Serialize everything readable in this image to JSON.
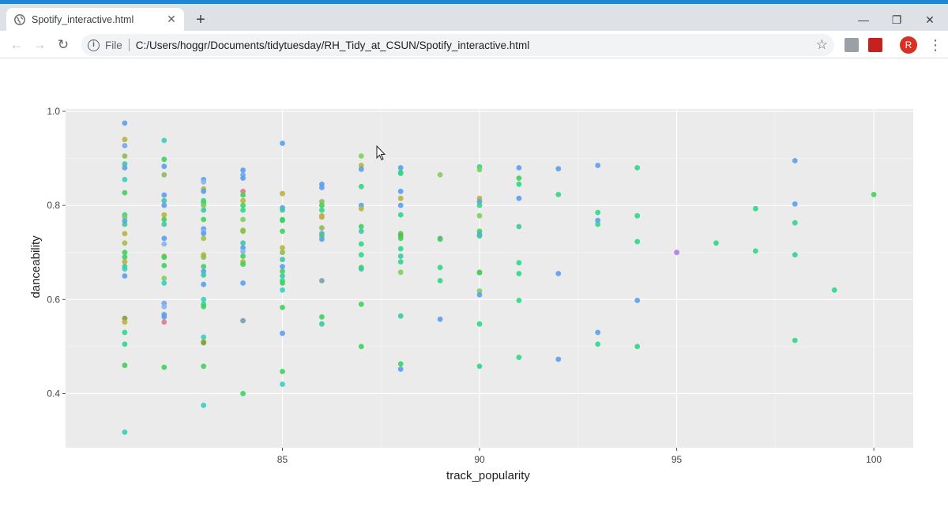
{
  "browser": {
    "tab_title": "Spotify_interactive.html",
    "tab_close": "✕",
    "new_tab": "+",
    "minimize": "—",
    "restore": "❐",
    "close": "✕",
    "back": "←",
    "forward": "→",
    "reload": "↻",
    "info_glyph": "i",
    "scheme_label": "File",
    "url": "C:/Users/hoggr/Documents/tidytuesday/RH_Tidy_at_CSUN/Spotify_interactive.html",
    "star": "☆",
    "avatar_letter": "R",
    "menu": "⋮"
  },
  "chart_data": {
    "type": "scatter",
    "xlabel": "track_popularity",
    "ylabel": "danceability",
    "xlim": [
      79.5,
      101
    ],
    "ylim": [
      0.285,
      1.005
    ],
    "x_ticks": [
      85,
      90,
      95,
      100
    ],
    "y_ticks": [
      0.4,
      0.6,
      0.8,
      1.0
    ],
    "x_tick_labels": [
      "85",
      "90",
      "95",
      "100"
    ],
    "y_tick_labels": [
      "0.4",
      "0.6",
      "0.8",
      "1.0"
    ],
    "grid": true,
    "background": "#ebebeb",
    "points": [
      [
        81,
        0.975,
        "#5b9ef0"
      ],
      [
        81,
        0.94,
        "#b9b43a"
      ],
      [
        81,
        0.927,
        "#70a8f0"
      ],
      [
        81,
        0.905,
        "#8dbe52"
      ],
      [
        81,
        0.888,
        "#3cc8a5"
      ],
      [
        81,
        0.88,
        "#5b9ef0"
      ],
      [
        81,
        0.855,
        "#35d0c0"
      ],
      [
        81,
        0.827,
        "#3fd25e"
      ],
      [
        81,
        0.78,
        "#2dd88a"
      ],
      [
        81,
        0.775,
        "#7fcf5c"
      ],
      [
        81,
        0.767,
        "#5b9ef0"
      ],
      [
        81,
        0.76,
        "#3cc8a5"
      ],
      [
        81,
        0.74,
        "#b9b43a"
      ],
      [
        81,
        0.72,
        "#a6bd47"
      ],
      [
        81,
        0.7,
        "#3fd25e"
      ],
      [
        81,
        0.69,
        "#3fd25e"
      ],
      [
        81,
        0.68,
        "#c4a94a"
      ],
      [
        81,
        0.67,
        "#2dd88a"
      ],
      [
        81,
        0.665,
        "#35d0c0"
      ],
      [
        81,
        0.65,
        "#5b9ef0"
      ],
      [
        81,
        0.56,
        "#7ca23a"
      ],
      [
        81,
        0.552,
        "#b9b43a"
      ],
      [
        81,
        0.53,
        "#2dd88a"
      ],
      [
        81,
        0.505,
        "#2dd88a"
      ],
      [
        81,
        0.46,
        "#3fd25e"
      ],
      [
        81,
        0.318,
        "#35d0c0"
      ],
      [
        82,
        0.938,
        "#35d0c0"
      ],
      [
        82,
        0.898,
        "#3fd25e"
      ],
      [
        82,
        0.883,
        "#5b9ef0"
      ],
      [
        82,
        0.865,
        "#8dbe52"
      ],
      [
        82,
        0.822,
        "#5b9ef0"
      ],
      [
        82,
        0.81,
        "#3cc8a5"
      ],
      [
        82,
        0.8,
        "#5b9ef0"
      ],
      [
        82,
        0.78,
        "#b9b43a"
      ],
      [
        82,
        0.77,
        "#3fd25e"
      ],
      [
        82,
        0.76,
        "#3cc8a5"
      ],
      [
        82,
        0.73,
        "#5b9ef0"
      ],
      [
        82,
        0.718,
        "#8ab5f0"
      ],
      [
        82,
        0.692,
        "#b9b43a"
      ],
      [
        82,
        0.69,
        "#3fd25e"
      ],
      [
        82,
        0.672,
        "#3fd25e"
      ],
      [
        82,
        0.645,
        "#7fcf5c"
      ],
      [
        82,
        0.635,
        "#35d0c0"
      ],
      [
        82,
        0.592,
        "#70a8f0"
      ],
      [
        82,
        0.585,
        "#8ab5f0"
      ],
      [
        82,
        0.568,
        "#5b9ef0"
      ],
      [
        82,
        0.563,
        "#5b9ef0"
      ],
      [
        82,
        0.552,
        "#e07a88"
      ],
      [
        82,
        0.456,
        "#3fd25e"
      ],
      [
        83,
        0.855,
        "#5b9ef0"
      ],
      [
        83,
        0.85,
        "#8ab5f0"
      ],
      [
        83,
        0.835,
        "#b9b43a"
      ],
      [
        83,
        0.83,
        "#5b9ef0"
      ],
      [
        83,
        0.81,
        "#2dd88a"
      ],
      [
        83,
        0.805,
        "#3fd25e"
      ],
      [
        83,
        0.8,
        "#7fcf5c"
      ],
      [
        83,
        0.79,
        "#3cc8a5"
      ],
      [
        83,
        0.77,
        "#3fd25e"
      ],
      [
        83,
        0.75,
        "#5b9ef0"
      ],
      [
        83,
        0.745,
        "#8ab5f0"
      ],
      [
        83,
        0.74,
        "#5b9ef0"
      ],
      [
        83,
        0.73,
        "#a6bd47"
      ],
      [
        83,
        0.695,
        "#b9b43a"
      ],
      [
        83,
        0.69,
        "#8dbe52"
      ],
      [
        83,
        0.67,
        "#3fd25e"
      ],
      [
        83,
        0.66,
        "#5b9ef0"
      ],
      [
        83,
        0.652,
        "#3cc8a5"
      ],
      [
        83,
        0.632,
        "#5b9ef0"
      ],
      [
        83,
        0.6,
        "#35d0c0"
      ],
      [
        83,
        0.59,
        "#2dd88a"
      ],
      [
        83,
        0.585,
        "#3fd25e"
      ],
      [
        83,
        0.52,
        "#35d0c0"
      ],
      [
        83,
        0.51,
        "#b9b43a"
      ],
      [
        83,
        0.508,
        "#7ca23a"
      ],
      [
        83,
        0.458,
        "#3fd25e"
      ],
      [
        83,
        0.375,
        "#35d0c0"
      ],
      [
        84,
        0.875,
        "#5b9ef0"
      ],
      [
        84,
        0.865,
        "#70a8f0"
      ],
      [
        84,
        0.858,
        "#5b9ef0"
      ],
      [
        84,
        0.83,
        "#e07a88"
      ],
      [
        84,
        0.822,
        "#3fd25e"
      ],
      [
        84,
        0.81,
        "#b9b43a"
      ],
      [
        84,
        0.8,
        "#3fd25e"
      ],
      [
        84,
        0.79,
        "#2dd88a"
      ],
      [
        84,
        0.77,
        "#7fcf5c"
      ],
      [
        84,
        0.747,
        "#8dbe52"
      ],
      [
        84,
        0.745,
        "#8dbe52"
      ],
      [
        84,
        0.72,
        "#3cc8a5"
      ],
      [
        84,
        0.71,
        "#5b9ef0"
      ],
      [
        84,
        0.702,
        "#8ab5f0"
      ],
      [
        84,
        0.692,
        "#3fd25e"
      ],
      [
        84,
        0.68,
        "#b9b43a"
      ],
      [
        84,
        0.675,
        "#3fd25e"
      ],
      [
        84,
        0.635,
        "#5b9ef0"
      ],
      [
        84,
        0.555,
        "#7a9da8"
      ],
      [
        84,
        0.4,
        "#3fd25e"
      ],
      [
        85,
        0.932,
        "#5b9ef0"
      ],
      [
        85,
        0.825,
        "#b9b43a"
      ],
      [
        85,
        0.795,
        "#5b9ef0"
      ],
      [
        85,
        0.79,
        "#3cc8a5"
      ],
      [
        85,
        0.77,
        "#2dd88a"
      ],
      [
        85,
        0.768,
        "#3fd25e"
      ],
      [
        85,
        0.745,
        "#3fd25e"
      ],
      [
        85,
        0.71,
        "#b9b43a"
      ],
      [
        85,
        0.7,
        "#8dbe52"
      ],
      [
        85,
        0.685,
        "#3cc8a5"
      ],
      [
        85,
        0.67,
        "#5b9ef0"
      ],
      [
        85,
        0.66,
        "#3fd25e"
      ],
      [
        85,
        0.65,
        "#3cc8a5"
      ],
      [
        85,
        0.64,
        "#2dd88a"
      ],
      [
        85,
        0.635,
        "#3fd25e"
      ],
      [
        85,
        0.62,
        "#35d0c0"
      ],
      [
        85,
        0.583,
        "#3fd25e"
      ],
      [
        85,
        0.528,
        "#5b9ef0"
      ],
      [
        85,
        0.447,
        "#3fd25e"
      ],
      [
        85,
        0.42,
        "#35d0c0"
      ],
      [
        86,
        0.845,
        "#5b9ef0"
      ],
      [
        86,
        0.838,
        "#5b9ef0"
      ],
      [
        86,
        0.808,
        "#8dbe52"
      ],
      [
        86,
        0.8,
        "#3fd25e"
      ],
      [
        86,
        0.79,
        "#2dd88a"
      ],
      [
        86,
        0.778,
        "#b9b43a"
      ],
      [
        86,
        0.775,
        "#c4a94a"
      ],
      [
        86,
        0.752,
        "#8dbe52"
      ],
      [
        86,
        0.74,
        "#5b9ef0"
      ],
      [
        86,
        0.735,
        "#3fd25e"
      ],
      [
        86,
        0.728,
        "#5b9ef0"
      ],
      [
        86,
        0.64,
        "#7a9da8"
      ],
      [
        86,
        0.563,
        "#3fd25e"
      ],
      [
        86,
        0.548,
        "#3cc8a5"
      ],
      [
        87,
        0.905,
        "#7fcf5c"
      ],
      [
        87,
        0.885,
        "#b9b43a"
      ],
      [
        87,
        0.877,
        "#5b9ef0"
      ],
      [
        87,
        0.84,
        "#2dd88a"
      ],
      [
        87,
        0.8,
        "#5b9ef0"
      ],
      [
        87,
        0.793,
        "#b9b43a"
      ],
      [
        87,
        0.755,
        "#3fd25e"
      ],
      [
        87,
        0.745,
        "#3cc8a5"
      ],
      [
        87,
        0.718,
        "#2dd88a"
      ],
      [
        87,
        0.695,
        "#2dd88a"
      ],
      [
        87,
        0.668,
        "#3fd25e"
      ],
      [
        87,
        0.665,
        "#3cc8a5"
      ],
      [
        87,
        0.59,
        "#3fd25e"
      ],
      [
        87,
        0.5,
        "#3fd25e"
      ],
      [
        88,
        0.88,
        "#5b9ef0"
      ],
      [
        88,
        0.87,
        "#3fd25e"
      ],
      [
        88,
        0.868,
        "#2dd88a"
      ],
      [
        88,
        0.83,
        "#5b9ef0"
      ],
      [
        88,
        0.815,
        "#b9b43a"
      ],
      [
        88,
        0.8,
        "#5b9ef0"
      ],
      [
        88,
        0.78,
        "#2dd88a"
      ],
      [
        88,
        0.74,
        "#3fd25e"
      ],
      [
        88,
        0.735,
        "#7ca23a"
      ],
      [
        88,
        0.73,
        "#3fd25e"
      ],
      [
        88,
        0.708,
        "#2dd88a"
      ],
      [
        88,
        0.692,
        "#3cc8a5"
      ],
      [
        88,
        0.68,
        "#2dd88a"
      ],
      [
        88,
        0.658,
        "#7fcf5c"
      ],
      [
        88,
        0.565,
        "#3cc8a5"
      ],
      [
        88,
        0.463,
        "#3fd25e"
      ],
      [
        88,
        0.452,
        "#5b9ef0"
      ],
      [
        89,
        0.865,
        "#7fcf5c"
      ],
      [
        89,
        0.73,
        "#7a9da8"
      ],
      [
        89,
        0.728,
        "#3fd25e"
      ],
      [
        89,
        0.668,
        "#2dd88a"
      ],
      [
        89,
        0.64,
        "#2dd88a"
      ],
      [
        89,
        0.558,
        "#5b9ef0"
      ],
      [
        90,
        0.882,
        "#2dd88a"
      ],
      [
        90,
        0.876,
        "#7fcf5c"
      ],
      [
        90,
        0.815,
        "#b9b43a"
      ],
      [
        90,
        0.808,
        "#5b9ef0"
      ],
      [
        90,
        0.8,
        "#2dd88a"
      ],
      [
        90,
        0.778,
        "#7fcf5c"
      ],
      [
        90,
        0.745,
        "#3fd25e"
      ],
      [
        90,
        0.738,
        "#5b9ef0"
      ],
      [
        90,
        0.735,
        "#3cc8a5"
      ],
      [
        90,
        0.658,
        "#8dbe52"
      ],
      [
        90,
        0.657,
        "#3fd25e"
      ],
      [
        90,
        0.618,
        "#7fcf5c"
      ],
      [
        90,
        0.61,
        "#5b9ef0"
      ],
      [
        90,
        0.548,
        "#2dd88a"
      ],
      [
        90,
        0.458,
        "#2dd88a"
      ],
      [
        91,
        0.88,
        "#5b9ef0"
      ],
      [
        91,
        0.858,
        "#3fd25e"
      ],
      [
        91,
        0.845,
        "#2dd88a"
      ],
      [
        91,
        0.815,
        "#5b9ef0"
      ],
      [
        91,
        0.755,
        "#3cc8a5"
      ],
      [
        91,
        0.678,
        "#2dd88a"
      ],
      [
        91,
        0.655,
        "#2dd88a"
      ],
      [
        91,
        0.598,
        "#2dd88a"
      ],
      [
        91,
        0.477,
        "#2dd88a"
      ],
      [
        92,
        0.878,
        "#5b9ef0"
      ],
      [
        92,
        0.823,
        "#2dd88a"
      ],
      [
        92,
        0.655,
        "#5b9ef0"
      ],
      [
        92,
        0.473,
        "#5b9ef0"
      ],
      [
        93,
        0.885,
        "#5b9ef0"
      ],
      [
        93,
        0.785,
        "#2dd88a"
      ],
      [
        93,
        0.768,
        "#5b9ef0"
      ],
      [
        93,
        0.76,
        "#2dd88a"
      ],
      [
        93,
        0.53,
        "#5b9ef0"
      ],
      [
        93,
        0.505,
        "#2dd88a"
      ],
      [
        94,
        0.88,
        "#2dd88a"
      ],
      [
        94,
        0.778,
        "#2dd88a"
      ],
      [
        94,
        0.723,
        "#2dd88a"
      ],
      [
        94,
        0.598,
        "#5b9ef0"
      ],
      [
        94,
        0.5,
        "#2dd88a"
      ],
      [
        95,
        0.7,
        "#b07ae0"
      ],
      [
        96,
        0.72,
        "#2dd88a"
      ],
      [
        97,
        0.793,
        "#2dd88a"
      ],
      [
        97,
        0.703,
        "#2dd88a"
      ],
      [
        98,
        0.895,
        "#5b9ef0"
      ],
      [
        98,
        0.803,
        "#5b9ef0"
      ],
      [
        98,
        0.763,
        "#2dd88a"
      ],
      [
        98,
        0.695,
        "#2dd88a"
      ],
      [
        98,
        0.513,
        "#2dd88a"
      ],
      [
        99,
        0.62,
        "#2dd88a"
      ],
      [
        100,
        0.823,
        "#3fd25e"
      ]
    ]
  }
}
